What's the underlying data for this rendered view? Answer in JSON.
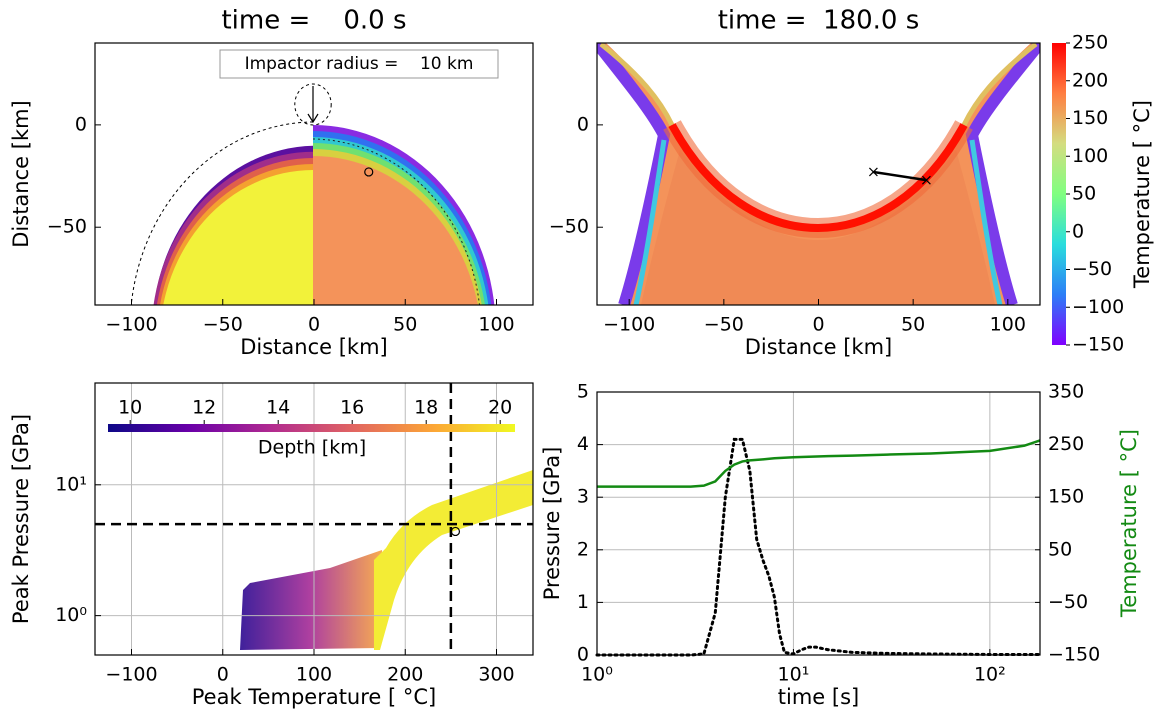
{
  "chart_data": [
    {
      "type": "impact",
      "title": "time =    0.0 s",
      "annotation": "Impactor radius =    10 km",
      "xlabel": "Distance [km]",
      "ylabel": "Distance [km]",
      "xlim": [
        -120,
        120
      ],
      "ylim": [
        -88,
        40
      ],
      "xticks": [
        {
          "value": -100,
          "label": "−100"
        },
        {
          "value": -50,
          "label": "−50"
        },
        0,
        50,
        100
      ],
      "yticks": [
        {
          "value": -50,
          "label": "−50"
        },
        0
      ],
      "grid": false,
      "tracer": {
        "x": 30,
        "y": -23
      }
    },
    {
      "type": "crater",
      "title": "time =  180.0 s",
      "xlabel": "Distance [km]",
      "xlim": [
        -117,
        117
      ],
      "ylim": [
        -88,
        40
      ],
      "xticks": [
        {
          "value": -100,
          "label": "−100"
        },
        {
          "value": -50,
          "label": "−50"
        },
        0,
        50,
        100
      ],
      "yticks": [
        {
          "value": -50,
          "label": "−50"
        },
        0
      ],
      "grid": false,
      "tracer": {
        "x": [
          29,
          57
        ],
        "y": [
          -23,
          -27
        ]
      },
      "colorbar": {
        "label": "Temperature [ °C]",
        "lim": [
          -150,
          250
        ],
        "ticks": [
          {
            "value": -150,
            "label": "−150"
          },
          {
            "value": -100,
            "label": "−100"
          },
          {
            "value": -50,
            "label": "−50"
          },
          0,
          50,
          100,
          150,
          200,
          250
        ],
        "colors": [
          "#8000ff",
          "#2c7ef7",
          "#2adddd",
          "#80ff80",
          "#d4dd80",
          "#ff7e41",
          "#ff0000"
        ]
      }
    },
    {
      "type": "scatter",
      "xlabel": "Peak Temperature [ °C]",
      "ylabel": "Peak Pressure [GPa]",
      "xlim": [
        -140,
        340
      ],
      "ylim": [
        0.5,
        60
      ],
      "ylog": true,
      "xticks": [
        {
          "value": -100,
          "label": "−100"
        },
        0,
        100,
        200,
        300
      ],
      "yticks": [
        {
          "value": 1,
          "label": "10⁰"
        },
        {
          "value": 10,
          "label": "10¹"
        }
      ],
      "grid": true,
      "vline": 250,
      "hline": 5,
      "marker": {
        "x": 255,
        "y": 4.4
      },
      "colorbar": {
        "label": "Depth [km]",
        "lim": [
          9.4,
          20.4
        ],
        "ticks": [
          10,
          12,
          14,
          16,
          18,
          20
        ],
        "colors": [
          "#0d0887",
          "#6a00a8",
          "#b12a90",
          "#e16462",
          "#fca636",
          "#f0f921"
        ]
      }
    },
    {
      "type": "line",
      "xlabel": "time [s]",
      "ylabel": "Pressure [GPa]",
      "y2label": "Temperature [ °C]",
      "xlim": [
        1,
        180
      ],
      "xlog": true,
      "ylim": [
        0,
        5
      ],
      "y2lim": [
        -150,
        350
      ],
      "xticks": [
        {
          "value": 1,
          "label": "10⁰"
        },
        {
          "value": 10,
          "label": "10¹"
        },
        {
          "value": 100,
          "label": "10²"
        }
      ],
      "yticks": [
        0,
        1,
        2,
        3,
        4,
        5
      ],
      "y2ticks": [
        {
          "value": -150,
          "label": "−150"
        },
        {
          "value": -50,
          "label": "−50"
        },
        50,
        150,
        250,
        350
      ],
      "y2color": "#138a13",
      "grid": true,
      "series": [
        {
          "color": "#000000",
          "style": "dotted",
          "x": [
            1,
            2,
            3,
            3.5,
            4,
            4.5,
            5,
            5.5,
            6,
            6.5,
            7,
            7.5,
            8,
            8.5,
            9,
            10,
            11,
            12,
            13,
            15,
            20,
            30,
            50,
            100,
            180
          ],
          "values": [
            0,
            0,
            0,
            0.02,
            0.8,
            3.0,
            4.1,
            4.1,
            3.5,
            2.2,
            1.8,
            1.5,
            1.1,
            0.4,
            0.05,
            0.02,
            0.1,
            0.15,
            0.15,
            0.1,
            0.05,
            0.03,
            0.02,
            0.01,
            0.01
          ]
        },
        {
          "color": "#138a13",
          "style": "solid",
          "axis": "y2",
          "x": [
            1,
            2,
            3,
            3.5,
            4,
            4.5,
            5,
            5.5,
            6,
            7,
            8,
            10,
            15,
            20,
            30,
            50,
            100,
            150,
            180
          ],
          "values": [
            170,
            170,
            170,
            172,
            180,
            200,
            212,
            218,
            220,
            222,
            224,
            226,
            228,
            229,
            231,
            233,
            238,
            248,
            258
          ]
        }
      ]
    }
  ]
}
